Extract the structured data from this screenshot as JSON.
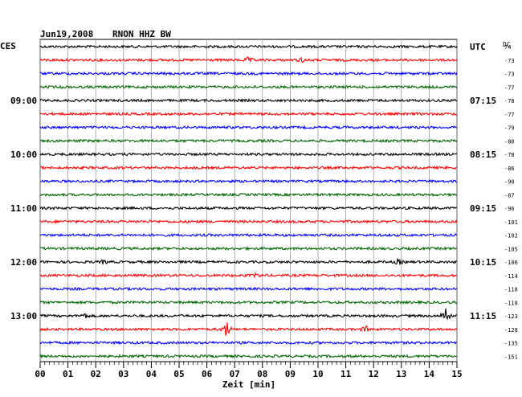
{
  "header": {
    "date": "Jun19,2008",
    "station": "RNON HHZ BW",
    "left_zone": "CES",
    "right_zone": "UTC",
    "dc_label": "DC"
  },
  "chart_data": {
    "type": "line",
    "xlabel": "Zeit [min]",
    "xlim": [
      0,
      15
    ],
    "x_ticks": [
      "00",
      "01",
      "02",
      "03",
      "04",
      "05",
      "06",
      "07",
      "08",
      "09",
      "10",
      "11",
      "12",
      "13",
      "14",
      "15"
    ],
    "trace_minutes": 15,
    "colors": [
      "#000000",
      "#ff0000",
      "#0000ff",
      "#006400"
    ],
    "left_time_labels": [
      {
        "row": 4,
        "label": "09:00"
      },
      {
        "row": 8,
        "label": "10:00"
      },
      {
        "row": 12,
        "label": "11:00"
      },
      {
        "row": 16,
        "label": "12:00"
      },
      {
        "row": 20,
        "label": "13:00"
      }
    ],
    "right_time_labels": [
      {
        "row": 0,
        "label": "UTC"
      },
      {
        "row": 4,
        "label": "07:15"
      },
      {
        "row": 8,
        "label": "08:15"
      },
      {
        "row": 12,
        "label": "09:15"
      },
      {
        "row": 16,
        "label": "10:15"
      },
      {
        "row": 20,
        "label": "11:15"
      }
    ],
    "dc_offsets": [
      "74",
      "-73",
      "-73",
      "-77",
      "-78",
      "-77",
      "-79",
      "-80",
      "-78",
      "-86",
      "-90",
      "-87",
      "-96",
      "-101",
      "-102",
      "-105",
      "-106",
      "-114",
      "-118",
      "-118",
      "-123",
      "-128",
      "-135",
      "-151"
    ],
    "events": [
      {
        "row": 1,
        "minute": 7.5,
        "amp": 4
      },
      {
        "row": 1,
        "minute": 9.4,
        "amp": 3
      },
      {
        "row": 16,
        "minute": 2.3,
        "amp": 3
      },
      {
        "row": 16,
        "minute": 12.9,
        "amp": 4
      },
      {
        "row": 17,
        "minute": 7.8,
        "amp": 3
      },
      {
        "row": 20,
        "minute": 1.6,
        "amp": 4
      },
      {
        "row": 20,
        "minute": 14.6,
        "amp": 16
      },
      {
        "row": 21,
        "minute": 6.7,
        "amp": 13
      },
      {
        "row": 21,
        "minute": 11.7,
        "amp": 5
      }
    ]
  }
}
